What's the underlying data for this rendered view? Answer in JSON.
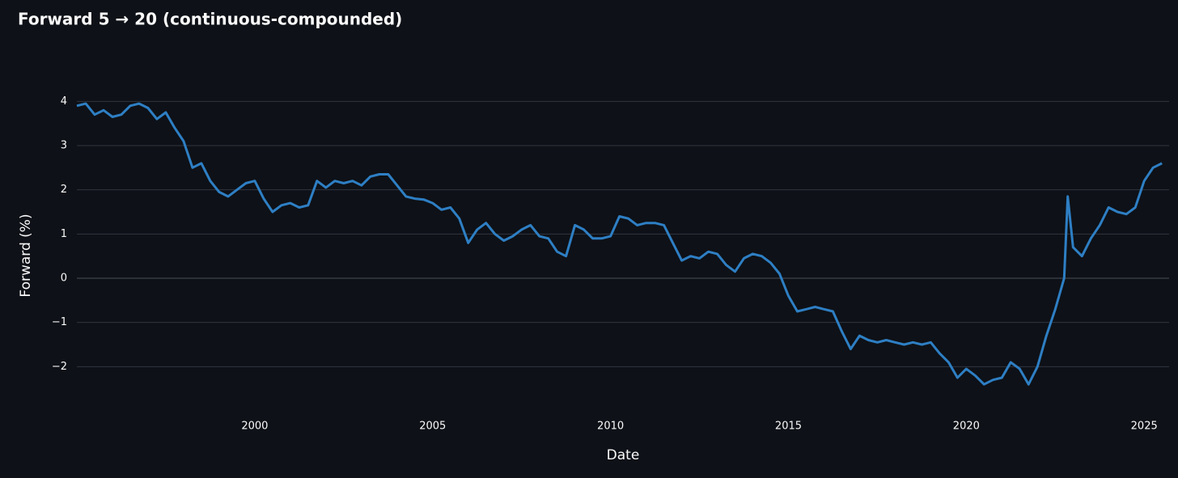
{
  "chart_data": {
    "type": "line",
    "title": "Forward 5 → 20   (continuous-compounded)",
    "x_label": "Date",
    "y_label": "Forward (%)",
    "xlim": [
      1995,
      2025.7
    ],
    "ylim": [
      -3,
      4.5
    ],
    "xticks": [
      2000,
      2005,
      2010,
      2015,
      2020,
      2025
    ],
    "yticks": [
      {
        "value": -2,
        "label": "−2"
      },
      {
        "value": -1,
        "label": "−1"
      },
      0,
      1,
      2,
      3,
      4
    ],
    "grid": true,
    "x": [
      1995.0,
      1995.25,
      1995.5,
      1995.75,
      1996.0,
      1996.25,
      1996.5,
      1996.75,
      1997.0,
      1997.25,
      1997.5,
      1997.75,
      1998.0,
      1998.25,
      1998.5,
      1998.75,
      1999.0,
      1999.25,
      1999.5,
      1999.75,
      2000.0,
      2000.25,
      2000.5,
      2000.75,
      2001.0,
      2001.25,
      2001.5,
      2001.75,
      2002.0,
      2002.25,
      2002.5,
      2002.75,
      2003.0,
      2003.25,
      2003.5,
      2003.75,
      2004.0,
      2004.25,
      2004.5,
      2004.75,
      2005.0,
      2005.25,
      2005.5,
      2005.75,
      2006.0,
      2006.25,
      2006.5,
      2006.75,
      2007.0,
      2007.25,
      2007.5,
      2007.75,
      2008.0,
      2008.25,
      2008.5,
      2008.75,
      2009.0,
      2009.25,
      2009.5,
      2009.75,
      2010.0,
      2010.25,
      2010.5,
      2010.75,
      2011.0,
      2011.25,
      2011.5,
      2011.75,
      2012.0,
      2012.25,
      2012.5,
      2012.75,
      2013.0,
      2013.25,
      2013.5,
      2013.75,
      2014.0,
      2014.25,
      2014.5,
      2014.75,
      2015.0,
      2015.25,
      2015.5,
      2015.75,
      2016.0,
      2016.25,
      2016.5,
      2016.75,
      2017.0,
      2017.25,
      2017.5,
      2017.75,
      2018.0,
      2018.25,
      2018.5,
      2018.75,
      2019.0,
      2019.25,
      2019.5,
      2019.75,
      2020.0,
      2020.25,
      2020.5,
      2020.75,
      2021.0,
      2021.25,
      2021.5,
      2021.75,
      2022.0,
      2022.25,
      2022.5,
      2022.75,
      2022.85,
      2023.0,
      2023.25,
      2023.5,
      2023.75,
      2024.0,
      2024.25,
      2024.5,
      2024.75,
      2025.0,
      2025.25,
      2025.5
    ],
    "series": [
      {
        "name": "Forward",
        "color": "#2e7fc4",
        "values": [
          3.9,
          3.95,
          3.7,
          3.8,
          3.65,
          3.7,
          3.9,
          3.95,
          3.85,
          3.6,
          3.75,
          3.4,
          3.1,
          2.5,
          2.6,
          2.2,
          1.95,
          1.85,
          2.0,
          2.15,
          2.2,
          1.8,
          1.5,
          1.65,
          1.7,
          1.6,
          1.65,
          2.2,
          2.05,
          2.2,
          2.15,
          2.2,
          2.1,
          2.3,
          2.35,
          2.35,
          2.1,
          1.85,
          1.8,
          1.78,
          1.7,
          1.55,
          1.6,
          1.35,
          0.8,
          1.1,
          1.25,
          1.0,
          0.85,
          0.95,
          1.1,
          1.2,
          0.95,
          0.9,
          0.6,
          0.5,
          1.2,
          1.1,
          0.9,
          0.9,
          0.95,
          1.4,
          1.35,
          1.2,
          1.25,
          1.25,
          1.2,
          0.8,
          0.4,
          0.5,
          0.45,
          0.6,
          0.55,
          0.3,
          0.15,
          0.45,
          0.55,
          0.5,
          0.35,
          0.1,
          -0.4,
          -0.75,
          -0.7,
          -0.65,
          -0.7,
          -0.75,
          -1.2,
          -1.6,
          -1.3,
          -1.4,
          -1.45,
          -1.4,
          -1.45,
          -1.5,
          -1.45,
          -1.5,
          -1.45,
          -1.7,
          -1.9,
          -2.25,
          -2.05,
          -2.2,
          -2.4,
          -2.3,
          -2.25,
          -1.9,
          -2.05,
          -2.4,
          -2.0,
          -1.3,
          -0.7,
          0.0,
          1.85,
          0.7,
          0.5,
          0.9,
          1.2,
          1.6,
          1.5,
          1.45,
          1.6,
          2.2,
          2.5,
          2.6
        ]
      }
    ]
  }
}
